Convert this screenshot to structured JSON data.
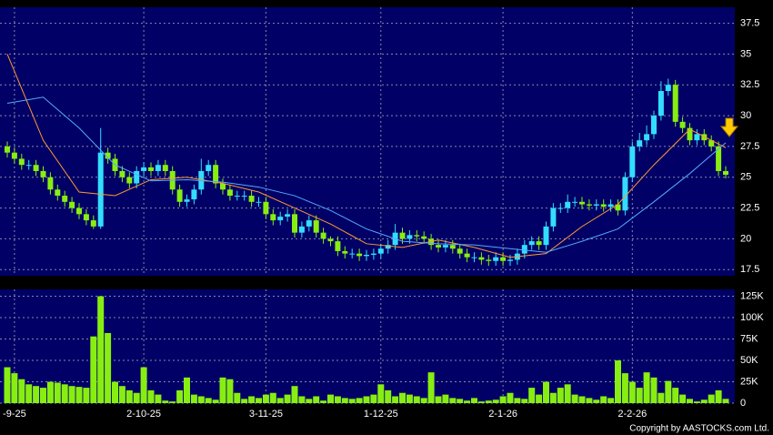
{
  "chart_data": [
    {
      "type": "candlestick",
      "categories": [
        null,
        "-9-25",
        null,
        null,
        null,
        null,
        null,
        null,
        null,
        null,
        null,
        null,
        null,
        null,
        null,
        null,
        null,
        null,
        null,
        "2-10-25",
        null,
        null,
        null,
        null,
        null,
        null,
        null,
        null,
        null,
        null,
        null,
        null,
        null,
        null,
        null,
        null,
        "3-11-25",
        null,
        null,
        null,
        null,
        null,
        null,
        null,
        null,
        null,
        null,
        null,
        null,
        null,
        null,
        null,
        "1-12-25",
        null,
        null,
        null,
        null,
        null,
        null,
        null,
        null,
        null,
        null,
        null,
        null,
        null,
        null,
        null,
        null,
        "2-1-26",
        null,
        null,
        null,
        null,
        null,
        null,
        null,
        null,
        null,
        null,
        null,
        null,
        null,
        null,
        null,
        null,
        null,
        "2-2-26",
        null,
        null,
        null,
        null,
        null,
        null,
        null,
        null,
        null,
        null,
        null,
        null,
        null
      ],
      "open": [
        27.5,
        27,
        26.5,
        26,
        26,
        25.5,
        25,
        24,
        23.5,
        23,
        22.5,
        22,
        21.5,
        21,
        27,
        26.5,
        25.5,
        25,
        24.5,
        25.5,
        25.8,
        25.5,
        26,
        25.5,
        24,
        23,
        23.2,
        24,
        25.5,
        26,
        24.5,
        24,
        23.5,
        23.5,
        23.5,
        23,
        23,
        22,
        21.5,
        21.8,
        22,
        20.5,
        21,
        21.5,
        20.5,
        20,
        19.8,
        19,
        18.8,
        18.8,
        18.6,
        18.7,
        18.8,
        19.2,
        19.5,
        20.5,
        20,
        20.3,
        20.2,
        20,
        19.5,
        19.3,
        19.5,
        19.2,
        18.8,
        18.5,
        18.5,
        18.3,
        18.2,
        18.5,
        18.2,
        18.3,
        18.8,
        19.5,
        19.8,
        19.5,
        21,
        22.5,
        22.5,
        23,
        23,
        22.8,
        22.7,
        22.8,
        22.6,
        22.8,
        22.3,
        25,
        27.5,
        28,
        28.5,
        30,
        32,
        32.5,
        29.5,
        29,
        28,
        28.5,
        28,
        27.5,
        25.5
      ],
      "high": [
        27.9,
        27.4,
        26.9,
        26.4,
        26.4,
        25.9,
        25.4,
        24.4,
        23.9,
        23.4,
        22.9,
        22.4,
        21.9,
        29,
        27.4,
        26.9,
        25.9,
        25.4,
        25.9,
        26.2,
        26.2,
        26.4,
        26.4,
        25.9,
        24.4,
        23.6,
        24.4,
        26.5,
        26.4,
        26.4,
        24.9,
        24.4,
        23.9,
        23.9,
        23.9,
        23.4,
        23.4,
        22.4,
        22.2,
        22.4,
        22.4,
        21.4,
        21.9,
        21.9,
        20.9,
        20.2,
        20.2,
        19.4,
        19.2,
        19.2,
        19.1,
        19.2,
        19.6,
        19.9,
        21.2,
        20.9,
        20.7,
        20.7,
        20.6,
        20.4,
        19.9,
        19.9,
        19.9,
        19.6,
        19.2,
        18.9,
        18.9,
        18.7,
        18.9,
        18.9,
        18.7,
        19.2,
        19.9,
        20.2,
        20.2,
        21.4,
        22.9,
        22.9,
        23.6,
        23.4,
        23.4,
        23.2,
        23.2,
        23.2,
        23.2,
        23.2,
        25.4,
        27.9,
        28.6,
        29.2,
        30.4,
        32.8,
        33,
        32.9,
        29.9,
        29.4,
        28.9,
        28.9,
        28.4,
        27.9,
        25.9
      ],
      "low": [
        26.6,
        26.1,
        25.6,
        25.6,
        25.1,
        24.6,
        23.6,
        23.1,
        22.6,
        22.1,
        21.6,
        21.1,
        20.8,
        20.8,
        26.1,
        25.1,
        24.6,
        24.1,
        24.1,
        25.1,
        25.1,
        25.1,
        25.1,
        23.6,
        22.6,
        22.6,
        22.8,
        23.6,
        25.1,
        24.1,
        23.6,
        23.1,
        23.1,
        23.1,
        22.6,
        22.6,
        21.6,
        21.1,
        21.1,
        21.4,
        20.1,
        20.1,
        20.6,
        20.1,
        19.6,
        19.4,
        18.6,
        18.4,
        18.4,
        18.2,
        18.2,
        18.3,
        18.4,
        18.8,
        19.1,
        19.6,
        19.6,
        19.8,
        19.6,
        19.1,
        18.9,
        18.9,
        18.8,
        18.4,
        18.1,
        18.1,
        17.9,
        17.8,
        17.8,
        17.8,
        17.8,
        17.9,
        18.4,
        19.1,
        19.1,
        19.1,
        20.6,
        22.1,
        22.1,
        22.6,
        22.4,
        22.3,
        22.3,
        22.2,
        22.2,
        21.9,
        21.9,
        24.6,
        27.1,
        27.6,
        28.1,
        29.6,
        31.6,
        29.1,
        28.6,
        27.6,
        27.6,
        27.6,
        27.1,
        25.1,
        24.9
      ],
      "close": [
        27,
        26.5,
        26,
        26,
        25.5,
        25,
        24,
        23.5,
        23,
        22.5,
        22,
        21.5,
        21,
        27,
        26.5,
        25.5,
        25,
        24.5,
        25.5,
        25.8,
        25.5,
        26,
        25.5,
        24,
        23,
        23.2,
        24,
        25.5,
        26,
        24.5,
        24,
        23.5,
        23.5,
        23.5,
        23,
        23,
        22,
        21.5,
        21.8,
        22,
        20.5,
        21,
        21.5,
        20.5,
        20,
        19.8,
        19,
        18.8,
        18.8,
        18.6,
        18.7,
        18.8,
        19.2,
        19.5,
        20.5,
        20,
        20.3,
        20.2,
        20,
        19.5,
        19.3,
        19.5,
        19.2,
        18.8,
        18.5,
        18.5,
        18.3,
        18.2,
        18.5,
        18.2,
        18.3,
        18.8,
        19.5,
        19.8,
        19.5,
        21,
        22.5,
        22.5,
        23,
        23,
        22.8,
        22.7,
        22.8,
        22.6,
        22.8,
        22.3,
        25,
        27.5,
        28,
        28.5,
        30,
        32,
        32.5,
        29.5,
        29,
        28,
        28.5,
        28,
        27.5,
        25.5,
        25.2
      ],
      "up_color": "#33ddff",
      "down_color": "#88ee11",
      "series": [
        {
          "color": "#ff9933",
          "x": [
            0,
            5,
            10,
            15,
            20,
            25,
            30,
            35,
            40,
            45,
            50,
            55,
            60,
            65,
            70,
            75,
            80,
            85,
            90,
            95,
            100
          ],
          "values": [
            35,
            28,
            23.8,
            23.5,
            24.8,
            25,
            24.5,
            23.8,
            22.5,
            21.2,
            19.6,
            19.3,
            19.9,
            19.3,
            18.5,
            18.8,
            21,
            22.8,
            26,
            28.9,
            27.4
          ]
        },
        {
          "color": "#55aaff",
          "x": [
            0,
            5,
            10,
            15,
            20,
            25,
            30,
            35,
            40,
            45,
            50,
            55,
            60,
            65,
            70,
            75,
            80,
            85,
            90,
            95,
            100
          ],
          "values": [
            31,
            31.5,
            29,
            26,
            24.7,
            24.8,
            24.6,
            24.2,
            23.5,
            22.3,
            20.8,
            19.8,
            19.6,
            19.5,
            19.2,
            18.9,
            19.8,
            20.8,
            23,
            25.3,
            27.8
          ]
        }
      ],
      "ylim": [
        17,
        38.8
      ],
      "yticks": [
        17.5,
        20,
        22.5,
        25,
        27.5,
        30,
        32.5,
        35,
        37.5
      ],
      "grid": true
    },
    {
      "type": "bar",
      "color": "#88ee11",
      "values": [
        42,
        35,
        28,
        22,
        20,
        18,
        25,
        24,
        22,
        20,
        19,
        18,
        78,
        125,
        82,
        25,
        20,
        15,
        12,
        42,
        15,
        10,
        3,
        2,
        15,
        30,
        10,
        8,
        6,
        4,
        30,
        28,
        12,
        5,
        8,
        6,
        10,
        12,
        6,
        10,
        20,
        8,
        5,
        8,
        3,
        10,
        8,
        6,
        5,
        6,
        8,
        10,
        22,
        15,
        8,
        12,
        10,
        8,
        6,
        36,
        8,
        10,
        6,
        5,
        3,
        6,
        2,
        3,
        4,
        8,
        12,
        6,
        5,
        18,
        10,
        25,
        12,
        18,
        22,
        10,
        8,
        6,
        4,
        8,
        6,
        50,
        35,
        25,
        18,
        36,
        30,
        12,
        26,
        18,
        10,
        5,
        2,
        4,
        10,
        15,
        5
      ],
      "ylim": [
        0,
        133
      ],
      "yticks": [
        0,
        {
          "value": 25,
          "label": "25K"
        },
        {
          "value": 50,
          "label": "50K"
        },
        {
          "value": 75,
          "label": "75K"
        },
        {
          "value": 100,
          "label": "100K"
        },
        {
          "value": 125,
          "label": "125K"
        }
      ],
      "annotation": "Copyright by AASTOCKS.com Ltd.",
      "grid": true
    }
  ]
}
